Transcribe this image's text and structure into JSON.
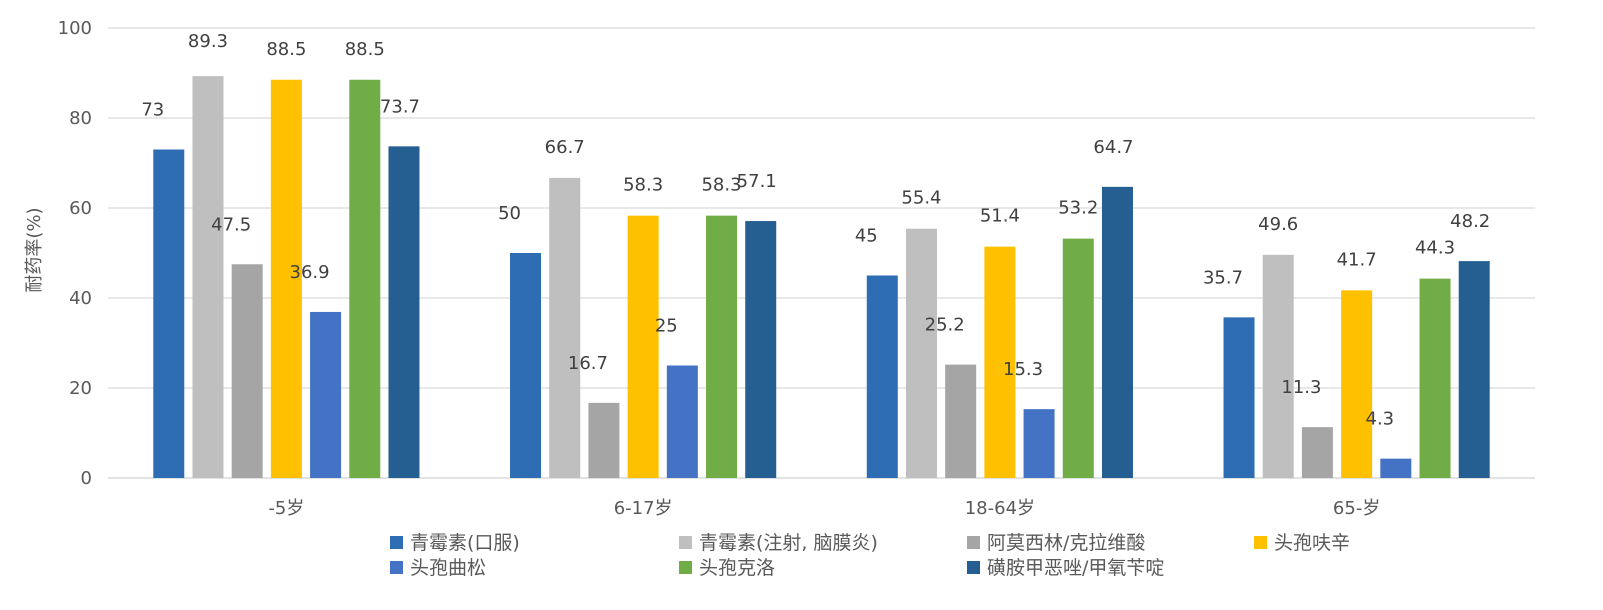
{
  "chart_data": {
    "type": "bar",
    "title": "",
    "xlabel": "",
    "ylabel": "耐药率(%)",
    "ylim": [
      0,
      100
    ],
    "yticks": [
      0,
      20,
      40,
      60,
      80,
      100
    ],
    "grid": true,
    "legend_position": "bottom",
    "categories": [
      "-5岁",
      "6-17岁",
      "18-64岁",
      "65-岁"
    ],
    "series": [
      {
        "name": "青霉素(口服)",
        "color": "#2E6DB4",
        "values": [
          73,
          50,
          45,
          35.7
        ]
      },
      {
        "name": "青霉素(注射, 脑膜炎)",
        "color": "#BFBFBF",
        "values": [
          89.3,
          66.7,
          55.4,
          49.6
        ]
      },
      {
        "name": "阿莫西林/克拉维酸",
        "color": "#A5A5A5",
        "values": [
          47.5,
          16.7,
          25.2,
          11.3
        ]
      },
      {
        "name": "头孢呋辛",
        "color": "#FFC000",
        "values": [
          88.5,
          58.3,
          51.4,
          41.7
        ]
      },
      {
        "name": "头孢曲松",
        "color": "#4472C4",
        "values": [
          36.9,
          25,
          15.3,
          4.3
        ]
      },
      {
        "name": "头孢克洛",
        "color": "#70AD47",
        "values": [
          88.5,
          58.3,
          53.2,
          44.3
        ]
      },
      {
        "name": "磺胺甲恶唑/甲氧苄啶",
        "color": "#255E91",
        "values": [
          73.7,
          57.1,
          64.7,
          48.2
        ]
      }
    ]
  }
}
